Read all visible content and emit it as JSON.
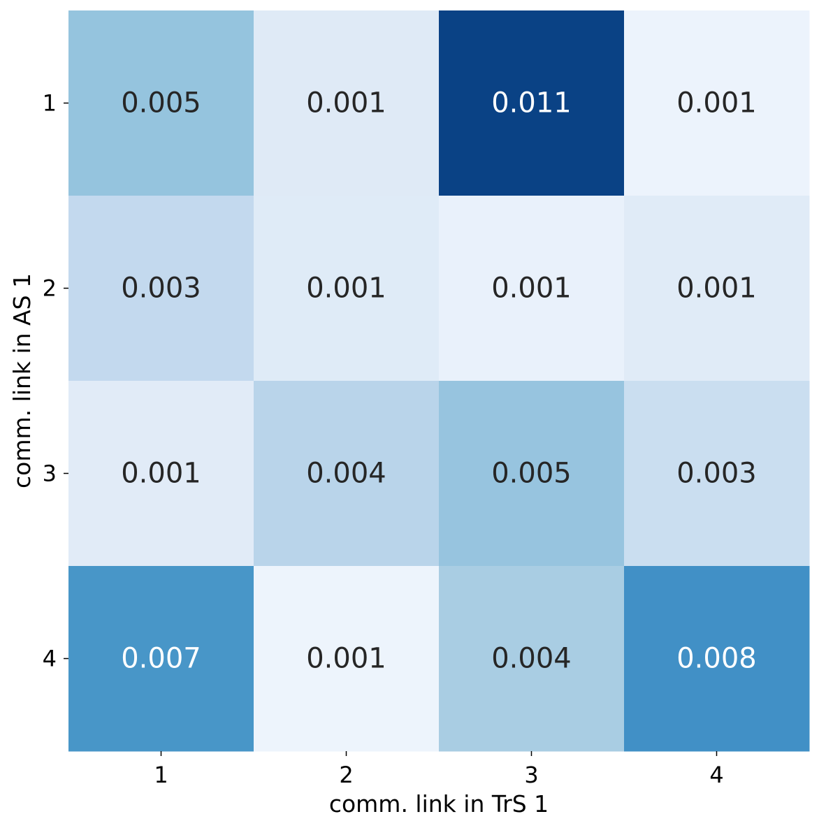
{
  "chart_data": {
    "type": "heatmap",
    "title": "",
    "xlabel": "comm. link in TrS 1",
    "ylabel": "comm. link in AS 1",
    "x_categories": [
      "1",
      "2",
      "3",
      "4"
    ],
    "y_categories": [
      "1",
      "2",
      "3",
      "4"
    ],
    "values": [
      [
        0.005,
        0.001,
        0.011,
        0.001
      ],
      [
        0.003,
        0.001,
        0.001,
        0.001
      ],
      [
        0.001,
        0.004,
        0.005,
        0.003
      ],
      [
        0.007,
        0.001,
        0.004,
        0.008
      ]
    ],
    "labels": [
      [
        "0.005",
        "0.001",
        "0.011",
        "0.001"
      ],
      [
        "0.003",
        "0.001",
        "0.001",
        "0.001"
      ],
      [
        "0.001",
        "0.004",
        "0.005",
        "0.003"
      ],
      [
        "0.007",
        "0.001",
        "0.004",
        "0.008"
      ]
    ],
    "colors": [
      [
        "#95c4de",
        "#dfeaf6",
        "#0a4285",
        "#ecf3fc"
      ],
      [
        "#c3d9ee",
        "#dfebf7",
        "#e9f1fb",
        "#e0ebf7"
      ],
      [
        "#e1ebf7",
        "#b9d4ea",
        "#97c4df",
        "#cadef0"
      ],
      [
        "#4896c8",
        "#edf4fc",
        "#a9cde3",
        "#4190c6"
      ]
    ],
    "label_colors": [
      [
        "#262626",
        "#262626",
        "#ffffff",
        "#262626"
      ],
      [
        "#262626",
        "#262626",
        "#262626",
        "#262626"
      ],
      [
        "#262626",
        "#262626",
        "#262626",
        "#262626"
      ],
      [
        "#ffffff",
        "#262626",
        "#262626",
        "#ffffff"
      ]
    ],
    "colormap": "Blues",
    "colorbar": false,
    "grid": false
  }
}
